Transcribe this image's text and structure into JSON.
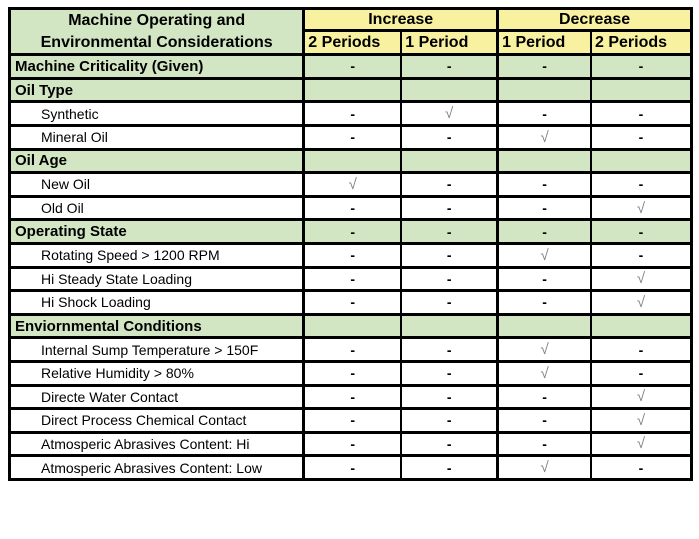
{
  "title_block": {
    "line1": "Machine Operating and",
    "line2": "Environmental Considerations"
  },
  "header": {
    "groups": [
      {
        "label": "Increase"
      },
      {
        "label": "Decrease"
      }
    ],
    "subcolumns": [
      "2 Periods",
      "1 Period",
      "1 Period",
      "2 Periods"
    ]
  },
  "symbols": {
    "dash": "-",
    "check": "√",
    "none": ""
  },
  "colors": {
    "green_bg": "#d3e6c4",
    "yellow_bg": "#f8f1a0",
    "border_color": "#000000",
    "check_color": "#7d828a",
    "dash_color": "#000000",
    "page_bg": "#ffffff"
  },
  "rows": [
    {
      "label": "Machine Criticality (Given)",
      "type": "section",
      "cells": [
        "dash",
        "dash",
        "dash",
        "dash"
      ]
    },
    {
      "label": "Oil Type",
      "type": "section",
      "cells": [
        "none",
        "none",
        "none",
        "none"
      ]
    },
    {
      "label": "Synthetic",
      "type": "item",
      "cells": [
        "dash",
        "check",
        "dash",
        "dash"
      ]
    },
    {
      "label": "Mineral Oil",
      "type": "item",
      "cells": [
        "dash",
        "dash",
        "check",
        "dash"
      ]
    },
    {
      "label": "Oil Age",
      "type": "section",
      "cells": [
        "none",
        "none",
        "none",
        "none"
      ]
    },
    {
      "label": "New Oil",
      "type": "item",
      "cells": [
        "check",
        "dash",
        "dash",
        "dash"
      ]
    },
    {
      "label": "Old Oil",
      "type": "item",
      "cells": [
        "dash",
        "dash",
        "dash",
        "check"
      ]
    },
    {
      "label": "Operating State",
      "type": "section",
      "cells": [
        "dash",
        "dash",
        "dash",
        "dash"
      ]
    },
    {
      "label": "Rotating Speed > 1200 RPM",
      "type": "item",
      "cells": [
        "dash",
        "dash",
        "check",
        "dash"
      ]
    },
    {
      "label": "Hi Steady State Loading",
      "type": "item",
      "cells": [
        "dash",
        "dash",
        "dash",
        "check"
      ]
    },
    {
      "label": "Hi Shock Loading",
      "type": "item",
      "cells": [
        "dash",
        "dash",
        "dash",
        "check"
      ]
    },
    {
      "label": "Enviornmental Conditions",
      "type": "section",
      "cells": [
        "none",
        "none",
        "none",
        "none"
      ]
    },
    {
      "label": "Internal Sump Temperature > 150F",
      "type": "item",
      "cells": [
        "dash",
        "dash",
        "check",
        "dash"
      ]
    },
    {
      "label": "Relative Humidity > 80%",
      "type": "item",
      "cells": [
        "dash",
        "dash",
        "check",
        "dash"
      ]
    },
    {
      "label": "Directe Water Contact",
      "type": "item",
      "cells": [
        "dash",
        "dash",
        "dash",
        "check"
      ]
    },
    {
      "label": "Direct Process Chemical Contact",
      "type": "item",
      "cells": [
        "dash",
        "dash",
        "dash",
        "check"
      ]
    },
    {
      "label": "Atmosperic Abrasives Content: Hi",
      "type": "item",
      "cells": [
        "dash",
        "dash",
        "dash",
        "check"
      ]
    },
    {
      "label": "Atmosperic Abrasives Content: Low",
      "type": "item",
      "cells": [
        "dash",
        "dash",
        "check",
        "dash"
      ]
    }
  ]
}
